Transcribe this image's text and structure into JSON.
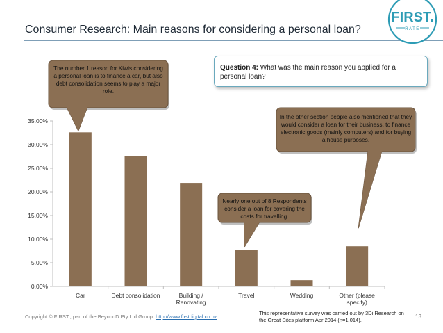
{
  "slide": {
    "title": "Consumer Research: Main reasons for considering a personal loan?",
    "page_number": "13"
  },
  "logo": {
    "text": "FIRST.",
    "subtext": "RATE",
    "color": "#2d9cb5"
  },
  "question": {
    "label": "Question 4:",
    "text": "What was the main reason you applied for a personal loan?"
  },
  "callouts": {
    "car": "The number 1 reason for Kiwis considering a personal loan is to finance a car, but also debt consolidation seems to play a major role.",
    "travel": "Nearly one out of 8 Respondents consider a loan for covering the costs for travelling.",
    "other": "In the other section people also mentioned that they would consider a loan for their business, to finance electronic goods (mainly computers) and for buying a house purposes."
  },
  "footer": {
    "copyright": "Copyright © FIRST., part of the BeyondD Pty Ltd Group.",
    "link": "http://www.firstdigital.co.nz",
    "note": "This representative survey was carried out by 3Di Research on the Great Sites platform Apr 2014 (n=1,014)."
  },
  "colors": {
    "bar": "#8b6f53",
    "callout_fill": "#8b6f53",
    "callout_text": "#111111",
    "axis": "#bfbfbf"
  },
  "chart_data": {
    "type": "bar",
    "title": "",
    "categories": [
      "Car",
      "Debt consolidation",
      "Building / Renovating",
      "Travel",
      "Wedding",
      "Other (please specify)"
    ],
    "category_lines": [
      [
        "Car"
      ],
      [
        "Debt consolidation"
      ],
      [
        "Building /",
        "Renovating"
      ],
      [
        "Travel"
      ],
      [
        "Wedding"
      ],
      [
        "Other (please",
        "specify)"
      ]
    ],
    "values": [
      32.6,
      27.6,
      21.9,
      7.7,
      1.3,
      8.5
    ],
    "y_ticks": [
      "0.00%",
      "5.00%",
      "10.00%",
      "15.00%",
      "20.00%",
      "25.00%",
      "30.00%",
      "35.00%"
    ],
    "ylim": [
      0,
      35
    ],
    "xlabel": "",
    "ylabel": "",
    "grid": false,
    "legend": "none"
  }
}
